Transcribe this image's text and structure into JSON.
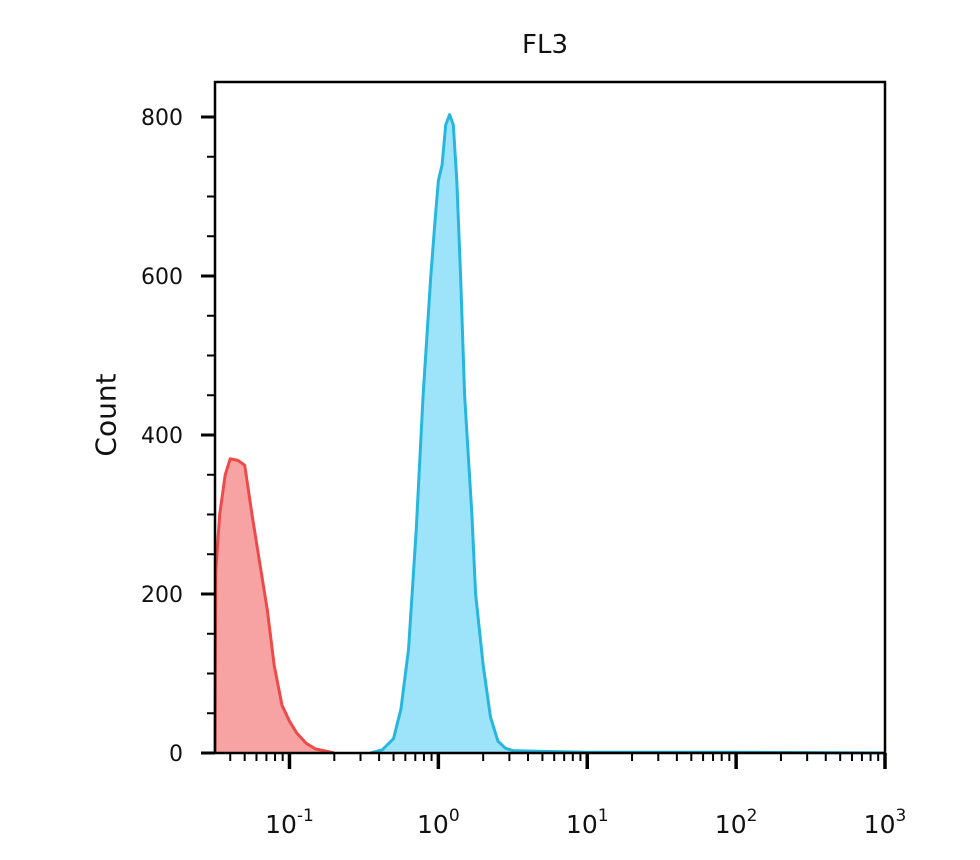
{
  "chart_data": {
    "type": "area",
    "title": "FL3",
    "ylabel": "Count",
    "xlabel": "",
    "xscale": "log",
    "xlim": [
      0.0316,
      1000
    ],
    "ylim": [
      0,
      840
    ],
    "yticks": [
      "0",
      "200",
      "400",
      "600",
      "800"
    ],
    "ytick_values": [
      0,
      200,
      400,
      600,
      800
    ],
    "xticks": [
      {
        "value": 0.1,
        "base": "10",
        "exp": "-1"
      },
      {
        "value": 1,
        "base": "10",
        "exp": "0"
      },
      {
        "value": 10,
        "base": "10",
        "exp": "1"
      },
      {
        "value": 100,
        "base": "10",
        "exp": "2"
      },
      {
        "value": 1000,
        "base": "10",
        "exp": "3"
      }
    ],
    "series": [
      {
        "color": "#ef4a4a",
        "fill": "#f8a3a3",
        "points": [
          [
            0.0316,
            0
          ],
          [
            0.032,
            230
          ],
          [
            0.034,
            300
          ],
          [
            0.037,
            350
          ],
          [
            0.04,
            370
          ],
          [
            0.045,
            368
          ],
          [
            0.05,
            362
          ],
          [
            0.056,
            300
          ],
          [
            0.063,
            240
          ],
          [
            0.071,
            180
          ],
          [
            0.079,
            110
          ],
          [
            0.089,
            60
          ],
          [
            0.1,
            40
          ],
          [
            0.112,
            25
          ],
          [
            0.13,
            12
          ],
          [
            0.15,
            5
          ],
          [
            0.178,
            2
          ],
          [
            0.2,
            0
          ]
        ]
      },
      {
        "color": "#27b6dd",
        "fill": "#9de4fb",
        "points": [
          [
            0.35,
            0
          ],
          [
            0.42,
            4
          ],
          [
            0.5,
            18
          ],
          [
            0.56,
            55
          ],
          [
            0.63,
            130
          ],
          [
            0.71,
            280
          ],
          [
            0.79,
            450
          ],
          [
            0.89,
            600
          ],
          [
            0.96,
            680
          ],
          [
            1.0,
            720
          ],
          [
            1.06,
            740
          ],
          [
            1.12,
            790
          ],
          [
            1.19,
            803
          ],
          [
            1.26,
            790
          ],
          [
            1.33,
            720
          ],
          [
            1.41,
            600
          ],
          [
            1.5,
            450
          ],
          [
            1.68,
            300
          ],
          [
            1.78,
            200
          ],
          [
            2.0,
            110
          ],
          [
            2.24,
            45
          ],
          [
            2.51,
            15
          ],
          [
            2.82,
            6
          ],
          [
            3.16,
            3
          ],
          [
            5.0,
            2
          ],
          [
            10.0,
            1
          ],
          [
            100,
            1
          ],
          [
            1000,
            0
          ]
        ]
      }
    ]
  }
}
